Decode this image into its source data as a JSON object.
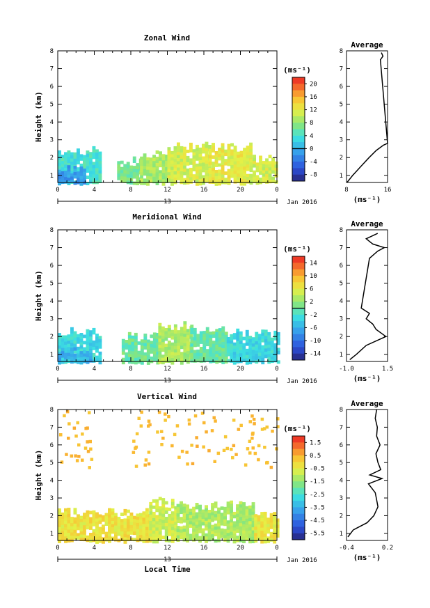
{
  "chart_data": [
    {
      "type": "heatmap",
      "title": "Zonal Wind",
      "xlabel": "",
      "ylabel": "Height (km)",
      "x_ticks": [
        "0",
        "4",
        "8",
        "12",
        "16",
        "20",
        "0"
      ],
      "y_ticks": [
        "1",
        "2",
        "3",
        "4",
        "5",
        "6",
        "7",
        "8"
      ],
      "ylim": [
        0.6,
        8.0
      ],
      "xlim": [
        0,
        24
      ],
      "date_ticks": [
        "13"
      ],
      "date_label": "Jan 2016",
      "colorbar": {
        "unit": "(ms⁻¹)",
        "min": -10,
        "max": 22,
        "ticks": [
          "20",
          "16",
          "12",
          "8",
          "4",
          "0",
          "-4",
          "-8"
        ],
        "tick_values": [
          20,
          16,
          12,
          8,
          4,
          0,
          -4,
          -8
        ],
        "zero_line": 0
      },
      "approx_field": {
        "segments": [
          {
            "x0": 0.0,
            "x1": 4.6,
            "top": 2.4,
            "bottom": 0.6,
            "value": 4
          },
          {
            "x0": 0.0,
            "x1": 2.8,
            "top": 1.3,
            "bottom": 0.6,
            "value": -1
          },
          {
            "x0": 6.5,
            "x1": 9.0,
            "top": 1.8,
            "bottom": 0.6,
            "value": 7
          },
          {
            "x0": 9.0,
            "x1": 12.0,
            "top": 2.2,
            "bottom": 0.6,
            "value": 9
          },
          {
            "x0": 12.0,
            "x1": 16.5,
            "top": 2.7,
            "bottom": 0.6,
            "value": 11
          },
          {
            "x0": 16.5,
            "x1": 21.0,
            "top": 2.6,
            "bottom": 0.6,
            "value": 12
          },
          {
            "x0": 21.0,
            "x1": 24.0,
            "top": 1.9,
            "bottom": 0.6,
            "value": 11
          }
        ]
      },
      "profile": {
        "title": "Average",
        "x_ticks": [
          "8",
          "16"
        ],
        "xlim": [
          8,
          16
        ],
        "xlabel": "(ms⁻¹)",
        "height": [
          0.6,
          1.0,
          1.5,
          2.0,
          2.4,
          2.7,
          2.8,
          7.5,
          7.7,
          7.9
        ],
        "value": [
          8.1,
          9.2,
          10.8,
          12.4,
          13.8,
          15.2,
          16.0,
          14.6,
          15.1,
          14.8
        ]
      }
    },
    {
      "type": "heatmap",
      "title": "Meridional Wind",
      "xlabel": "",
      "ylabel": "Height (km)",
      "x_ticks": [
        "0",
        "4",
        "8",
        "12",
        "16",
        "20",
        "0"
      ],
      "y_ticks": [
        "1",
        "2",
        "3",
        "4",
        "5",
        "6",
        "7",
        "8"
      ],
      "ylim": [
        0.6,
        8.0
      ],
      "xlim": [
        0,
        24
      ],
      "date_ticks": [
        "13"
      ],
      "date_label": "Jan 2016",
      "colorbar": {
        "unit": "(ms⁻¹)",
        "min": -16,
        "max": 16,
        "ticks": [
          "14",
          "10",
          "6",
          "2",
          "-2",
          "-6",
          "-10",
          "-14"
        ],
        "tick_values": [
          14,
          10,
          6,
          2,
          -2,
          -6,
          -10,
          -14
        ],
        "zero_line": 0
      },
      "approx_field": {
        "segments": [
          {
            "x0": 0.0,
            "x1": 4.5,
            "top": 2.3,
            "bottom": 0.6,
            "value": -3
          },
          {
            "x0": 0.0,
            "x1": 3.5,
            "top": 1.2,
            "bottom": 0.6,
            "value": -6
          },
          {
            "x0": 7.0,
            "x1": 11.0,
            "top": 2.0,
            "bottom": 0.6,
            "value": 0
          },
          {
            "x0": 11.0,
            "x1": 14.5,
            "top": 2.6,
            "bottom": 0.6,
            "value": 3
          },
          {
            "x0": 14.5,
            "x1": 18.5,
            "top": 2.4,
            "bottom": 0.6,
            "value": 0
          },
          {
            "x0": 18.5,
            "x1": 24.0,
            "top": 2.2,
            "bottom": 0.6,
            "value": -3
          }
        ]
      },
      "profile": {
        "title": "Average",
        "x_ticks": [
          "-1.0",
          "1.5"
        ],
        "xlim": [
          -1.0,
          1.5
        ],
        "xlabel": "(ms⁻¹)",
        "height": [
          0.7,
          1.0,
          1.5,
          2.0,
          2.4,
          2.7,
          3.0,
          3.3,
          3.6,
          6.4,
          6.8,
          7.0,
          7.2,
          7.5,
          7.8
        ],
        "value": [
          -0.8,
          -0.4,
          0.2,
          1.4,
          0.8,
          0.6,
          0.2,
          0.4,
          -0.1,
          0.4,
          0.9,
          1.3,
          0.6,
          0.2,
          0.9
        ]
      }
    },
    {
      "type": "heatmap",
      "title": "Vertical Wind",
      "xlabel": "Local Time",
      "ylabel": "Height (km)",
      "x_ticks": [
        "0",
        "4",
        "8",
        "12",
        "16",
        "20",
        "0"
      ],
      "y_ticks": [
        "1",
        "2",
        "3",
        "4",
        "5",
        "6",
        "7",
        "8"
      ],
      "ylim": [
        0.6,
        8.0
      ],
      "xlim": [
        0,
        24
      ],
      "date_ticks": [
        "13"
      ],
      "date_label": "Jan 2016",
      "colorbar": {
        "unit": "(ms⁻¹)",
        "min": -6.0,
        "max": 2.0,
        "ticks": [
          "1.5",
          "0.5",
          "-0.5",
          "-1.5",
          "-2.5",
          "-3.5",
          "-4.5",
          "-5.5"
        ],
        "tick_values": [
          1.5,
          0.5,
          -0.5,
          -1.5,
          -2.5,
          -3.5,
          -4.5,
          -5.5
        ]
      },
      "approx_field": {
        "segments": [
          {
            "x0": 0.0,
            "x1": 10.0,
            "top": 2.2,
            "bottom": 0.6,
            "value": -0.3
          },
          {
            "x0": 10.0,
            "x1": 13.0,
            "top": 2.9,
            "bottom": 0.6,
            "value": -0.8
          },
          {
            "x0": 13.0,
            "x1": 21.5,
            "top": 2.6,
            "bottom": 0.6,
            "value": -1.2
          },
          {
            "x0": 21.5,
            "x1": 24.0,
            "top": 2.0,
            "bottom": 0.6,
            "value": -0.4
          }
        ]
      },
      "profile": {
        "title": "Average",
        "x_ticks": [
          "-0.4",
          "0.2"
        ],
        "xlim": [
          -0.4,
          0.2
        ],
        "xlabel": "(ms⁻¹)",
        "height": [
          0.8,
          1.2,
          1.6,
          2.0,
          2.5,
          2.9,
          3.3,
          3.8,
          4.1,
          4.3,
          4.6,
          5.0,
          5.5,
          6.0,
          6.5,
          7.0,
          7.5,
          8.0
        ],
        "value": [
          -0.38,
          -0.3,
          -0.1,
          0.0,
          0.06,
          0.04,
          0.02,
          -0.08,
          0.12,
          -0.06,
          0.1,
          0.06,
          0.03,
          0.09,
          0.04,
          0.05,
          0.02,
          0.04
        ]
      }
    }
  ]
}
